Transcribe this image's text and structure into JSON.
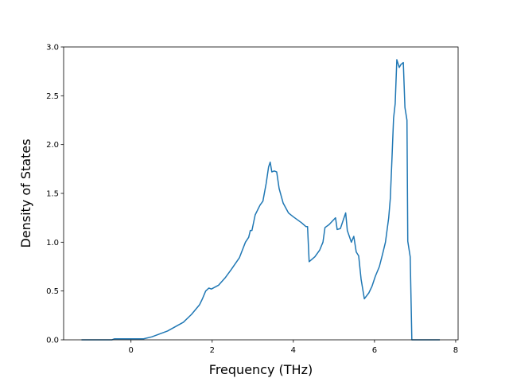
{
  "chart_data": {
    "type": "line",
    "xlabel": "Frequency (THz)",
    "ylabel": "Density of States",
    "x": [
      -1.22,
      -0.47,
      -0.41,
      0,
      0.31,
      0.51,
      0.9,
      1.29,
      1.49,
      1.69,
      1.76,
      1.84,
      1.92,
      1.98,
      2.16,
      2.33,
      2.47,
      2.67,
      2.82,
      2.9,
      2.94,
      2.98,
      3.06,
      3.18,
      3.25,
      3.33,
      3.39,
      3.43,
      3.47,
      3.53,
      3.59,
      3.65,
      3.75,
      3.88,
      4.0,
      4.2,
      4.31,
      4.35,
      4.39,
      4.53,
      4.65,
      4.73,
      4.78,
      4.88,
      5.04,
      5.08,
      5.16,
      5.29,
      5.33,
      5.43,
      5.49,
      5.55,
      5.61,
      5.67,
      5.75,
      5.86,
      5.94,
      6.02,
      6.12,
      6.2,
      6.27,
      6.35,
      6.39,
      6.43,
      6.47,
      6.51,
      6.55,
      6.61,
      6.65,
      6.71,
      6.75,
      6.8,
      6.82,
      6.88,
      6.92,
      7.61
    ],
    "series": [
      {
        "color": "#1f77b4",
        "values": [
          0,
          0,
          0.01,
          0.01,
          0.01,
          0.03,
          0.09,
          0.18,
          0.26,
          0.36,
          0.42,
          0.5,
          0.53,
          0.52,
          0.56,
          0.64,
          0.72,
          0.84,
          1.0,
          1.05,
          1.12,
          1.12,
          1.28,
          1.38,
          1.42,
          1.6,
          1.77,
          1.82,
          1.72,
          1.73,
          1.72,
          1.55,
          1.4,
          1.3,
          1.26,
          1.2,
          1.16,
          1.16,
          0.8,
          0.85,
          0.92,
          1.0,
          1.15,
          1.18,
          1.25,
          1.13,
          1.14,
          1.3,
          1.12,
          1.0,
          1.06,
          0.9,
          0.86,
          0.62,
          0.42,
          0.48,
          0.55,
          0.65,
          0.75,
          0.88,
          1.0,
          1.25,
          1.45,
          1.85,
          2.27,
          2.42,
          2.87,
          2.79,
          2.82,
          2.84,
          2.38,
          2.25,
          1.01,
          0.85,
          0,
          0
        ]
      }
    ],
    "xlim": [
      -1.66,
      8.06
    ],
    "xticks": [
      0,
      2,
      4,
      6,
      8
    ],
    "ylim": [
      0,
      3.0
    ],
    "yticks": [
      {
        "value": 0,
        "label": "0.0"
      },
      {
        "value": 0.5,
        "label": "0.5"
      },
      {
        "value": 1.0,
        "label": "1.0"
      },
      {
        "value": 1.5,
        "label": "1.5"
      },
      {
        "value": 2.0,
        "label": "2.0"
      },
      {
        "value": 2.5,
        "label": "2.5"
      },
      {
        "value": 3.0,
        "label": "3.0"
      }
    ]
  }
}
